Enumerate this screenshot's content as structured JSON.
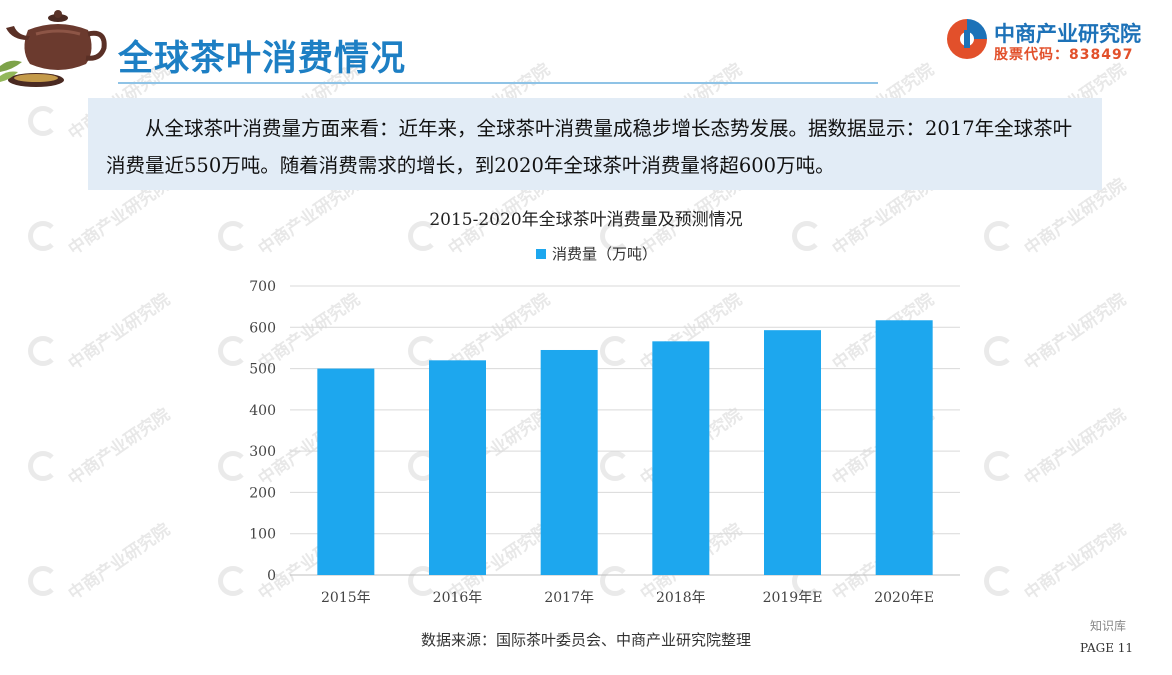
{
  "header": {
    "title": "全球茶叶消费情况",
    "logo_name": "中商产业研究院",
    "logo_stock_code": "股票代码：838497"
  },
  "summary": {
    "text": "从全球茶叶消费量方面来看：近年来，全球茶叶消费量成稳步增长态势发展。据数据显示：2017年全球茶叶消费量近550万吨。随着消费需求的增长，到2020年全球茶叶消费量将超600万吨。"
  },
  "chart_data": {
    "type": "bar",
    "title": "2015-2020年全球茶叶消费量及预测情况",
    "categories": [
      "2015年",
      "2016年",
      "2017年",
      "2018年",
      "2019年E",
      "2020年E"
    ],
    "series": [
      {
        "name": "消费量（万吨）",
        "values": [
          500,
          520,
          545,
          566,
          593,
          617
        ],
        "color": "#1da7ee"
      }
    ],
    "ylim": [
      0,
      700
    ],
    "yticks": [
      0,
      100,
      200,
      300,
      400,
      500,
      600,
      700
    ],
    "grid": true,
    "legend_position": "top-center"
  },
  "footer": {
    "source": "数据来源：国际茶叶委员会、中商产业研究院整理",
    "page": "PAGE 11",
    "wechat_mark": "知识库"
  },
  "colors": {
    "title_blue": "#1d7fc4",
    "bar_blue": "#1da7ee",
    "summary_bg": "#e2ecf6",
    "logo_red": "#e2502b"
  }
}
